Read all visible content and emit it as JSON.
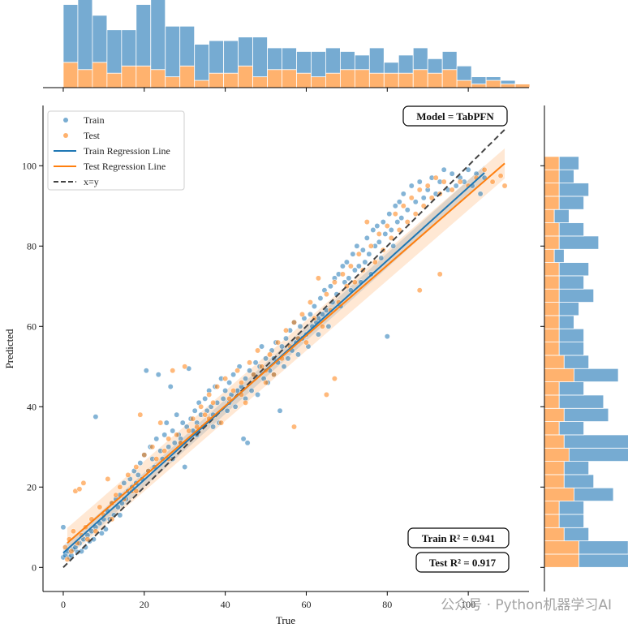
{
  "chart_data": {
    "type": "scatter",
    "title": "",
    "xlabel": "True",
    "ylabel": "Predicted",
    "xlim": [
      -5,
      115
    ],
    "ylim": [
      -6,
      115
    ],
    "xticks": [
      0,
      20,
      40,
      60,
      80,
      100
    ],
    "yticks": [
      0,
      20,
      40,
      60,
      80,
      100
    ],
    "colors": {
      "train": "#1f77b4",
      "test": "#ff7f0e",
      "identity": "#444444"
    },
    "model_label": "Model = TabPFN",
    "train_r2_text": "Train R² = 0.941",
    "test_r2_text": "Test R² = 0.917",
    "legend": [
      "Train",
      "Test",
      "Train Regression Line",
      "Test Regression Line",
      "x=y"
    ],
    "train_fit": {
      "slope": 0.91,
      "intercept": 3.6,
      "x_range": [
        0,
        104
      ]
    },
    "test_fit": {
      "slope": 0.875,
      "intercept": 5.2,
      "x_range": [
        1,
        109
      ]
    },
    "identity_range": [
      0,
      109
    ],
    "train_points": [
      [
        0,
        10
      ],
      [
        0,
        2.5
      ],
      [
        0.5,
        3
      ],
      [
        1,
        4
      ],
      [
        1.5,
        2.5
      ],
      [
        2,
        3
      ],
      [
        2.5,
        4.5
      ],
      [
        3,
        5
      ],
      [
        3.5,
        3.8
      ],
      [
        4,
        6
      ],
      [
        4.5,
        4
      ],
      [
        5,
        7
      ],
      [
        5.5,
        5
      ],
      [
        6,
        8
      ],
      [
        6.5,
        6.5
      ],
      [
        7,
        9
      ],
      [
        7.5,
        7
      ],
      [
        8,
        37.5
      ],
      [
        8,
        10
      ],
      [
        9,
        11
      ],
      [
        9.5,
        8.5
      ],
      [
        10,
        12
      ],
      [
        10.5,
        9.5
      ],
      [
        11,
        14
      ],
      [
        11.5,
        12
      ],
      [
        12,
        16
      ],
      [
        12.5,
        13
      ],
      [
        13,
        17
      ],
      [
        13.5,
        15
      ],
      [
        14,
        18
      ],
      [
        14.5,
        16
      ],
      [
        15,
        21
      ],
      [
        15.5,
        17
      ],
      [
        16,
        19
      ],
      [
        16.5,
        22
      ],
      [
        17,
        20
      ],
      [
        17.5,
        24
      ],
      [
        18,
        21
      ],
      [
        18.5,
        23
      ],
      [
        19,
        26
      ],
      [
        19.5,
        22
      ],
      [
        20,
        28
      ],
      [
        20.5,
        49
      ],
      [
        21,
        24
      ],
      [
        21.5,
        30
      ],
      [
        22,
        27
      ],
      [
        22.5,
        25
      ],
      [
        23,
        32
      ],
      [
        23.5,
        48
      ],
      [
        24,
        29
      ],
      [
        24.5,
        27
      ],
      [
        25,
        33
      ],
      [
        25.5,
        36
      ],
      [
        26,
        30
      ],
      [
        26.5,
        45
      ],
      [
        27,
        34
      ],
      [
        27.5,
        31
      ],
      [
        28,
        38
      ],
      [
        28.5,
        33
      ],
      [
        29,
        32
      ],
      [
        29.5,
        36
      ],
      [
        30,
        25
      ],
      [
        30.5,
        35
      ],
      [
        31,
        49.5
      ],
      [
        31.5,
        37
      ],
      [
        32,
        34
      ],
      [
        32.5,
        39
      ],
      [
        33,
        36
      ],
      [
        33.5,
        41
      ],
      [
        34,
        38
      ],
      [
        34.5,
        35
      ],
      [
        35,
        42
      ],
      [
        35.5,
        39
      ],
      [
        36,
        44
      ],
      [
        36.5,
        40
      ],
      [
        37,
        38
      ],
      [
        37.5,
        45
      ],
      [
        38,
        41
      ],
      [
        38.5,
        36
      ],
      [
        39,
        47
      ],
      [
        39.5,
        42
      ],
      [
        40,
        44
      ],
      [
        40.5,
        39
      ],
      [
        41,
        46
      ],
      [
        41.5,
        43
      ],
      [
        42,
        48
      ],
      [
        42.5,
        40
      ],
      [
        43,
        44
      ],
      [
        43.5,
        50
      ],
      [
        44,
        45
      ],
      [
        44.5,
        32
      ],
      [
        45,
        47
      ],
      [
        45.5,
        31
      ],
      [
        46,
        49
      ],
      [
        46.5,
        44
      ],
      [
        47,
        48
      ],
      [
        47.5,
        51
      ],
      [
        48,
        43
      ],
      [
        48.5,
        50
      ],
      [
        49,
        55
      ],
      [
        49.5,
        47
      ],
      [
        50,
        52
      ],
      [
        50.5,
        46
      ],
      [
        51,
        49
      ],
      [
        51.5,
        54
      ],
      [
        52,
        48
      ],
      [
        52.5,
        56
      ],
      [
        53,
        51
      ],
      [
        53.5,
        39
      ],
      [
        54,
        55
      ],
      [
        54.5,
        50
      ],
      [
        55,
        57
      ],
      [
        55.5,
        52
      ],
      [
        56,
        59
      ],
      [
        56.5,
        54
      ],
      [
        57,
        61
      ],
      [
        57.5,
        56
      ],
      [
        58,
        53
      ],
      [
        58.5,
        60
      ],
      [
        59,
        57
      ],
      [
        59.5,
        62
      ],
      [
        60,
        58
      ],
      [
        60.5,
        55
      ],
      [
        61,
        63
      ],
      [
        61.5,
        60
      ],
      [
        62,
        65
      ],
      [
        62.5,
        61
      ],
      [
        63,
        58
      ],
      [
        63.5,
        67
      ],
      [
        64,
        63
      ],
      [
        64.5,
        69
      ],
      [
        65,
        64
      ],
      [
        65.5,
        60
      ],
      [
        66,
        70
      ],
      [
        66.5,
        66
      ],
      [
        67,
        72
      ],
      [
        67.5,
        68
      ],
      [
        68,
        73
      ],
      [
        68.5,
        65
      ],
      [
        69,
        75
      ],
      [
        69.5,
        71
      ],
      [
        70,
        76
      ],
      [
        70.5,
        72
      ],
      [
        71,
        69
      ],
      [
        71.5,
        78
      ],
      [
        72,
        74
      ],
      [
        72.5,
        80
      ],
      [
        73,
        75
      ],
      [
        73.5,
        71
      ],
      [
        74,
        79
      ],
      [
        74.5,
        76
      ],
      [
        75,
        82
      ],
      [
        75.5,
        78
      ],
      [
        76,
        73
      ],
      [
        76.5,
        84
      ],
      [
        77,
        80
      ],
      [
        77.5,
        85
      ],
      [
        78,
        81
      ],
      [
        78.5,
        77
      ],
      [
        79,
        86
      ],
      [
        79.5,
        83
      ],
      [
        80,
        57.5
      ],
      [
        80.5,
        88
      ],
      [
        81,
        84
      ],
      [
        81.5,
        80
      ],
      [
        82,
        90
      ],
      [
        82.5,
        86
      ],
      [
        83,
        91
      ],
      [
        83.5,
        87
      ],
      [
        84,
        93
      ],
      [
        85,
        89
      ],
      [
        86,
        95
      ],
      [
        87,
        91
      ],
      [
        88,
        96
      ],
      [
        89,
        92
      ],
      [
        90,
        94
      ],
      [
        91,
        97
      ],
      [
        92,
        93
      ],
      [
        93,
        96
      ],
      [
        94,
        99
      ],
      [
        95,
        94
      ],
      [
        96,
        98
      ],
      [
        97,
        95
      ],
      [
        98,
        97
      ],
      [
        99,
        96
      ],
      [
        100,
        99
      ],
      [
        101,
        95
      ],
      [
        102,
        98
      ],
      [
        103,
        93
      ],
      [
        104,
        97
      ],
      [
        29,
        31
      ],
      [
        33,
        33
      ],
      [
        37,
        35
      ],
      [
        41,
        41
      ],
      [
        45,
        42
      ],
      [
        52,
        52
      ],
      [
        58,
        57
      ],
      [
        63,
        62
      ],
      [
        27,
        27
      ],
      [
        14,
        13
      ]
    ],
    "test_points": [
      [
        0.5,
        5
      ],
      [
        1,
        2
      ],
      [
        1.5,
        7
      ],
      [
        2,
        4
      ],
      [
        2.5,
        9
      ],
      [
        3,
        19
      ],
      [
        3.5,
        6
      ],
      [
        4,
        19.5
      ],
      [
        4.5,
        8
      ],
      [
        5,
        21
      ],
      [
        5.5,
        10
      ],
      [
        6,
        7
      ],
      [
        7,
        12
      ],
      [
        8,
        9
      ],
      [
        9,
        15
      ],
      [
        10,
        13
      ],
      [
        11,
        22
      ],
      [
        12,
        16
      ],
      [
        13,
        18
      ],
      [
        14,
        20
      ],
      [
        15,
        17
      ],
      [
        16,
        23
      ],
      [
        17,
        19
      ],
      [
        18,
        25
      ],
      [
        19,
        38
      ],
      [
        20,
        28
      ],
      [
        21,
        24
      ],
      [
        22,
        30
      ],
      [
        23,
        27
      ],
      [
        24,
        36
      ],
      [
        25,
        29
      ],
      [
        26,
        32
      ],
      [
        27,
        49
      ],
      [
        28,
        33
      ],
      [
        29,
        31
      ],
      [
        30,
        50
      ],
      [
        31,
        34
      ],
      [
        32,
        37
      ],
      [
        33,
        35
      ],
      [
        34,
        40
      ],
      [
        35,
        38
      ],
      [
        36,
        43
      ],
      [
        37,
        41
      ],
      [
        38,
        45
      ],
      [
        39,
        36
      ],
      [
        40,
        47
      ],
      [
        41,
        42
      ],
      [
        42,
        44
      ],
      [
        43,
        49
      ],
      [
        44,
        46
      ],
      [
        45,
        41
      ],
      [
        46,
        51
      ],
      [
        47,
        48
      ],
      [
        48,
        54
      ],
      [
        49,
        50
      ],
      [
        50,
        46
      ],
      [
        51,
        53
      ],
      [
        52,
        48
      ],
      [
        53,
        56
      ],
      [
        54,
        52
      ],
      [
        55,
        59
      ],
      [
        56,
        55
      ],
      [
        57,
        61
      ],
      [
        58,
        57
      ],
      [
        59,
        63
      ],
      [
        60,
        56
      ],
      [
        61,
        66
      ],
      [
        62,
        62
      ],
      [
        63,
        72
      ],
      [
        64,
        60
      ],
      [
        65,
        68
      ],
      [
        66,
        64
      ],
      [
        67,
        71
      ],
      [
        68,
        66
      ],
      [
        69,
        73
      ],
      [
        70,
        70
      ],
      [
        71,
        75
      ],
      [
        72,
        71
      ],
      [
        73,
        78
      ],
      [
        74,
        74
      ],
      [
        75,
        86
      ],
      [
        76,
        80
      ],
      [
        77,
        76
      ],
      [
        78,
        83
      ],
      [
        79,
        79
      ],
      [
        80,
        85
      ],
      [
        81,
        82
      ],
      [
        82,
        88
      ],
      [
        83,
        84
      ],
      [
        84,
        90
      ],
      [
        85,
        86
      ],
      [
        86,
        92
      ],
      [
        87,
        88
      ],
      [
        88,
        94
      ],
      [
        89,
        90
      ],
      [
        90,
        95
      ],
      [
        91,
        92
      ],
      [
        92,
        97
      ],
      [
        93,
        93
      ],
      [
        94,
        96
      ],
      [
        96,
        94
      ],
      [
        98,
        96
      ],
      [
        100,
        95
      ],
      [
        102,
        97
      ],
      [
        104,
        99
      ],
      [
        106,
        96
      ],
      [
        108,
        97.5
      ],
      [
        109,
        95
      ],
      [
        65,
        43
      ],
      [
        88,
        69
      ],
      [
        93,
        73
      ],
      [
        67,
        47
      ],
      [
        57,
        35
      ],
      [
        30,
        31
      ],
      [
        36,
        37
      ],
      [
        44,
        43
      ],
      [
        50,
        49
      ],
      [
        26,
        27
      ],
      [
        18,
        19
      ],
      [
        12,
        12
      ]
    ],
    "hist_top": {
      "bins_start": 0,
      "bin_width": 3.6,
      "train": [
        16,
        21,
        13,
        12,
        10,
        17,
        20,
        14,
        11,
        10,
        9,
        9,
        8,
        11,
        6,
        6,
        6,
        7,
        7,
        5,
        4,
        7,
        3,
        5,
        6,
        4,
        5,
        4,
        2,
        1,
        1,
        0
      ],
      "test": [
        7,
        5,
        7,
        4,
        6,
        6,
        5,
        3,
        6,
        2,
        4,
        4,
        6,
        3,
        5,
        5,
        4,
        3,
        4,
        5,
        5,
        4,
        4,
        4,
        5,
        4,
        5,
        2,
        1,
        2,
        1,
        1
      ]
    },
    "hist_right": {
      "bins_start": 0,
      "bin_width": 3.3,
      "train": [
        12,
        10,
        5,
        5,
        5,
        8,
        6,
        5,
        14,
        14,
        5,
        9,
        9,
        5,
        9,
        5,
        5,
        5,
        3,
        4,
        7,
        5,
        6,
        2,
        8,
        5,
        3,
        5,
        6,
        3,
        4
      ],
      "test": [
        7,
        7,
        4,
        3,
        3,
        6,
        4,
        4,
        5,
        4,
        3,
        4,
        3,
        3,
        6,
        4,
        3,
        3,
        3,
        3,
        3,
        3,
        3,
        2,
        3,
        3,
        2,
        3,
        3,
        3,
        3
      ]
    }
  },
  "watermark": "公众号 · Python机器学习AI"
}
